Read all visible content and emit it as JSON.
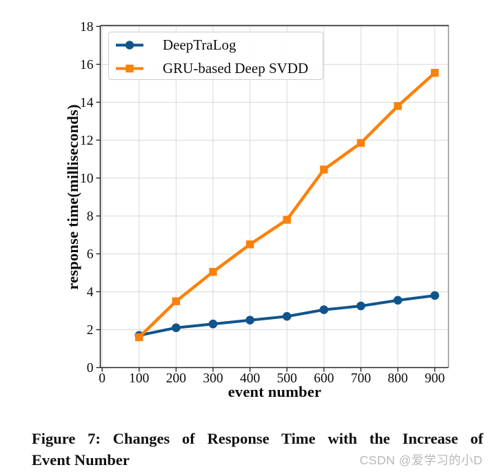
{
  "chart_data": {
    "type": "line",
    "title": "",
    "xlabel": "event number",
    "ylabel": "response time(milliseconds)",
    "x": [
      100,
      200,
      300,
      400,
      500,
      600,
      700,
      800,
      900
    ],
    "xticks": [
      0,
      100,
      200,
      300,
      400,
      500,
      600,
      700,
      800,
      900
    ],
    "yticks": [
      0,
      2,
      4,
      6,
      8,
      10,
      12,
      14,
      16,
      18
    ],
    "xlim": [
      -5,
      937
    ],
    "ylim": [
      0,
      18.05
    ],
    "grid": true,
    "legend_position": "upper left",
    "series": [
      {
        "name": "DeepTraLog",
        "color": "#10548C",
        "marker": "circle",
        "line_width": 4,
        "values": [
          1.7,
          2.1,
          2.3,
          2.5,
          2.7,
          3.05,
          3.25,
          3.55,
          3.8
        ]
      },
      {
        "name": "GRU-based Deep SVDD",
        "color": "#FC810A",
        "marker": "square",
        "line_width": 4.5,
        "values": [
          1.6,
          3.5,
          5.05,
          6.5,
          7.8,
          10.45,
          11.85,
          13.8,
          15.55
        ]
      }
    ],
    "grid_color": "#d9d9d9",
    "spine_color": "#262626",
    "right_spine_color": "#8f8f8f"
  },
  "caption": {
    "line1": "Figure 7: Changes of Response Time with the Increase of",
    "line2": "Event Number"
  },
  "watermark": {
    "text": "CSDN @爱学习的小D"
  }
}
